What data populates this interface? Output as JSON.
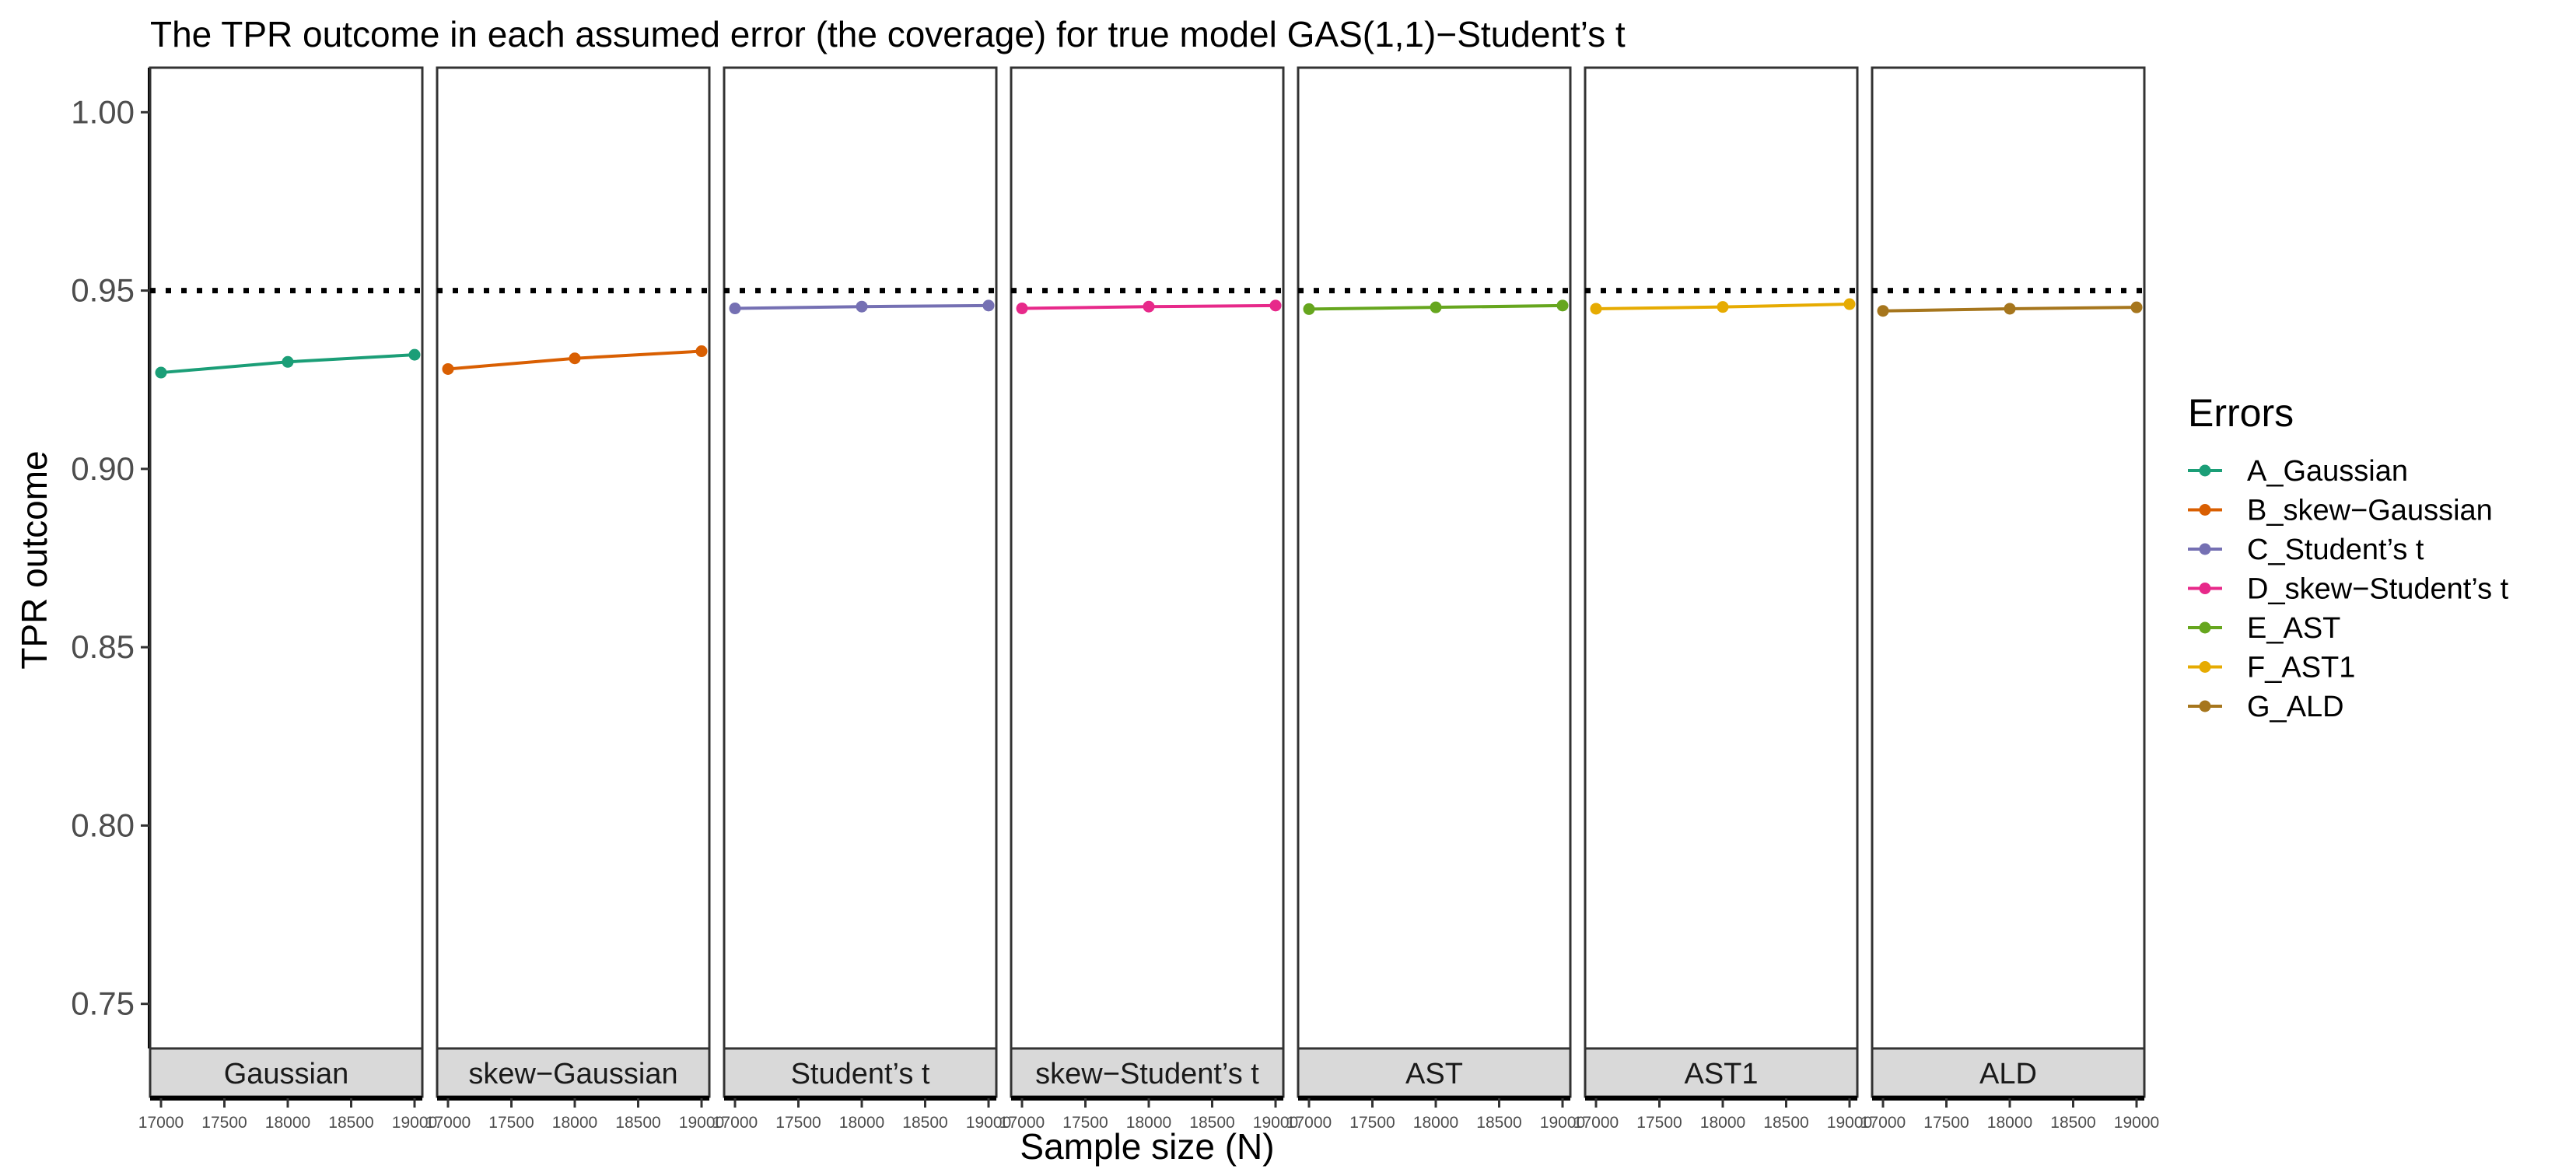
{
  "chart_data": {
    "type": "line",
    "title": "The TPR outcome in each assumed error (the coverage) for true model GAS(1,1)−Student’s t",
    "xlabel": "Sample size (N)",
    "ylabel": "TPR outcome",
    "ylim": [
      0.7375,
      1.0125
    ],
    "y_ticks": [
      1.0,
      0.95,
      0.9,
      0.85,
      0.8,
      0.75
    ],
    "y_tick_labels": [
      "1.00",
      "0.95",
      "0.90",
      "0.85",
      "0.80",
      "0.75"
    ],
    "xlim": [
      16900,
      19100
    ],
    "x_ticks": [
      17000,
      17500,
      18000,
      18500,
      19000
    ],
    "x_tick_labels": [
      "17000",
      "17500",
      "18000",
      "18500",
      "19000"
    ],
    "x": [
      17000,
      18000,
      19000
    ],
    "reference_line": 0.95,
    "reference_line_style": "dotted",
    "legend_title": "Errors",
    "legend_position": "right",
    "grid": false,
    "facets": [
      "Gaussian",
      "skew−Gaussian",
      "Student’s t",
      "skew−Student’s t",
      "AST",
      "AST1",
      "ALD"
    ],
    "series": [
      {
        "name": "A_Gaussian",
        "facet": "Gaussian",
        "color": "#1b9e77",
        "values": [
          0.927,
          0.93,
          0.932
        ]
      },
      {
        "name": "B_skew−Gaussian",
        "facet": "skew−Gaussian",
        "color": "#d95f02",
        "values": [
          0.928,
          0.931,
          0.933
        ]
      },
      {
        "name": "C_Student’s t",
        "facet": "Student’s t",
        "color": "#7570b3",
        "values": [
          0.945,
          0.9455,
          0.9458
        ]
      },
      {
        "name": "D_skew−Student’s t",
        "facet": "skew−Student’s t",
        "color": "#e7298a",
        "values": [
          0.945,
          0.9455,
          0.9458
        ]
      },
      {
        "name": "E_AST",
        "facet": "AST",
        "color": "#66a61e",
        "values": [
          0.9448,
          0.9453,
          0.9458
        ]
      },
      {
        "name": "F_AST1",
        "facet": "AST1",
        "color": "#e6ab02",
        "values": [
          0.9449,
          0.9454,
          0.9462
        ]
      },
      {
        "name": "G_ALD",
        "facet": "ALD",
        "color": "#a6761d",
        "values": [
          0.9443,
          0.9449,
          0.9453
        ]
      }
    ]
  }
}
